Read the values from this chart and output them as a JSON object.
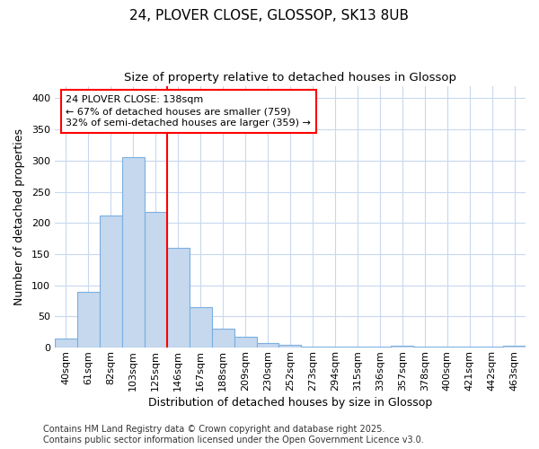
{
  "title_line1": "24, PLOVER CLOSE, GLOSSOP, SK13 8UB",
  "title_line2": "Size of property relative to detached houses in Glossop",
  "xlabel": "Distribution of detached houses by size in Glossop",
  "ylabel": "Number of detached properties",
  "bin_labels": [
    "40sqm",
    "61sqm",
    "82sqm",
    "103sqm",
    "125sqm",
    "146sqm",
    "167sqm",
    "188sqm",
    "209sqm",
    "230sqm",
    "252sqm",
    "273sqm",
    "294sqm",
    "315sqm",
    "336sqm",
    "357sqm",
    "378sqm",
    "400sqm",
    "421sqm",
    "442sqm",
    "463sqm"
  ],
  "bar_values": [
    15,
    90,
    212,
    305,
    218,
    160,
    65,
    30,
    17,
    8,
    5,
    2,
    2,
    2,
    2,
    3,
    1,
    1,
    1,
    1,
    3
  ],
  "bar_color": "#c5d8ee",
  "bar_edge_color": "#7aafe0",
  "vline_x": 4.5,
  "vline_color": "red",
  "annotation_text": "24 PLOVER CLOSE: 138sqm\n← 67% of detached houses are smaller (759)\n32% of semi-detached houses are larger (359) →",
  "annotation_box_color": "white",
  "annotation_box_edge_color": "red",
  "ylim": [
    0,
    420
  ],
  "yticks": [
    0,
    50,
    100,
    150,
    200,
    250,
    300,
    350,
    400
  ],
  "footer_text": "Contains HM Land Registry data © Crown copyright and database right 2025.\nContains public sector information licensed under the Open Government Licence v3.0.",
  "background_color": "#ffffff",
  "grid_color": "#c8d8f0",
  "title_fontsize": 11,
  "subtitle_fontsize": 9.5,
  "ylabel_fontsize": 9,
  "xlabel_fontsize": 9,
  "tick_fontsize": 8,
  "annotation_fontsize": 8,
  "footer_fontsize": 7
}
